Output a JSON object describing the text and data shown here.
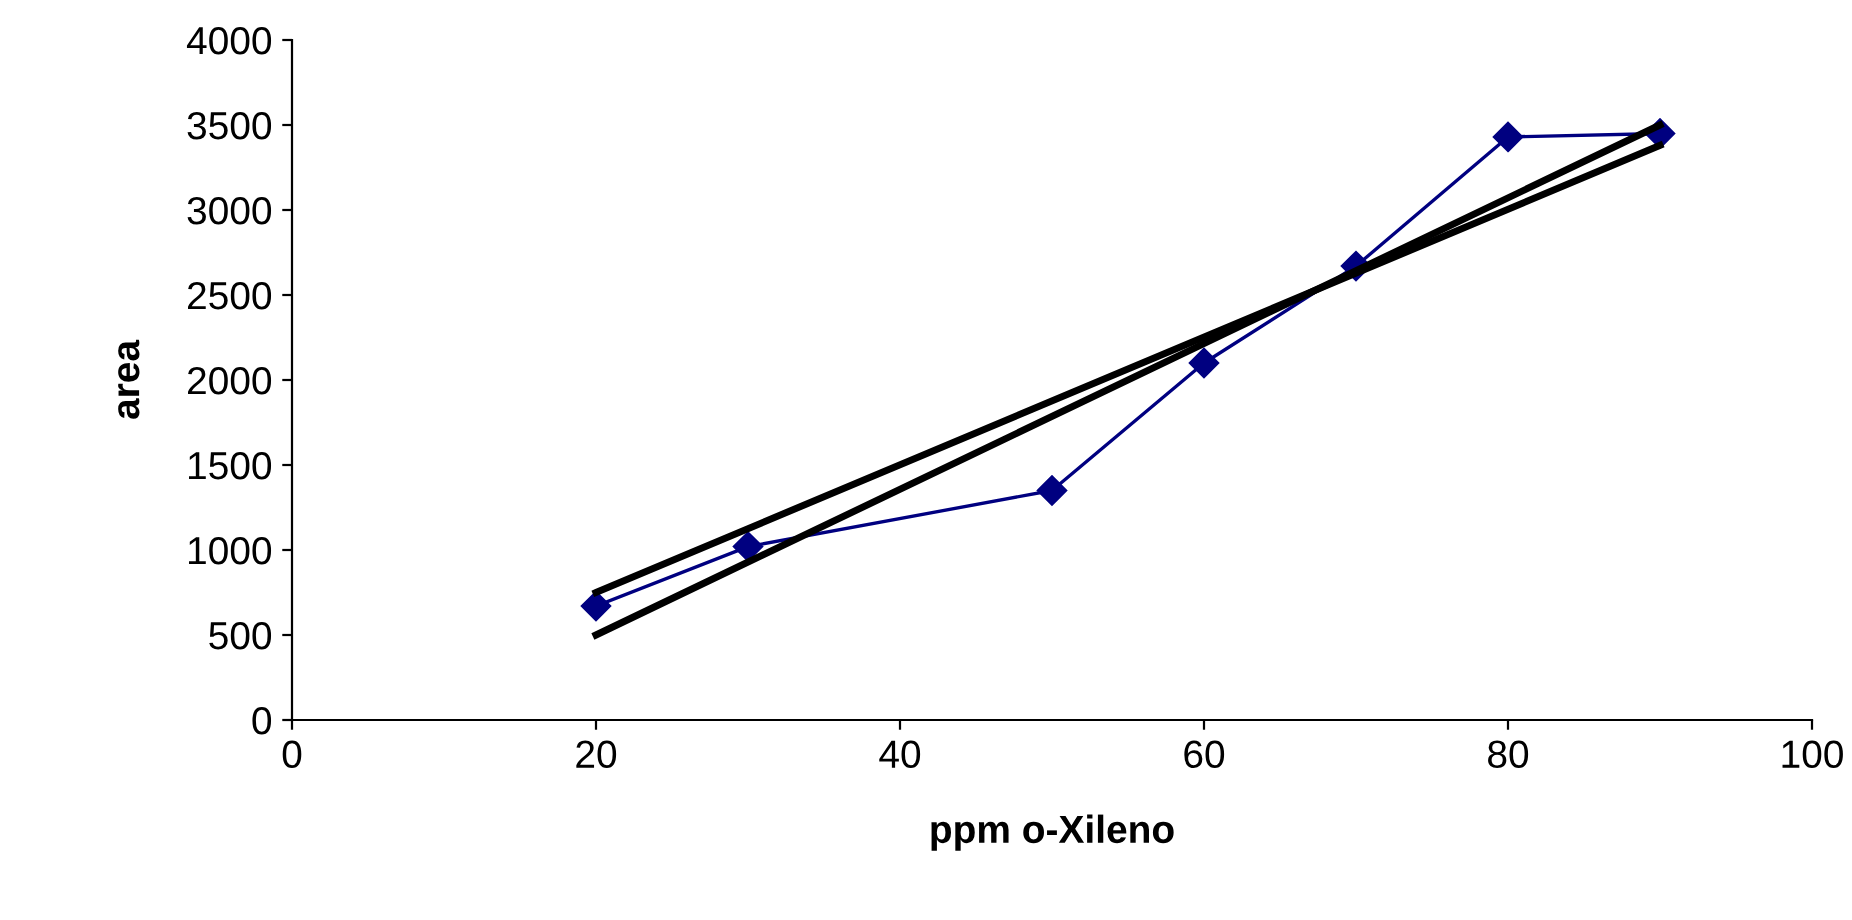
{
  "chart_data": {
    "type": "line",
    "xlabel": "ppm o-Xileno",
    "ylabel": "area",
    "series": [
      {
        "x": [
          20,
          30,
          50,
          60,
          70,
          80,
          90
        ],
        "values": [
          670,
          1020,
          1350,
          2100,
          2670,
          3430,
          3450
        ],
        "color": "#000080",
        "marker": "diamond"
      },
      {
        "x": [
          20,
          90
        ],
        "values": [
          750,
          3380
        ],
        "color": "#000000",
        "marker": "none"
      },
      {
        "x": [
          20,
          90
        ],
        "values": [
          500,
          3500
        ],
        "color": "#000000",
        "marker": "none"
      }
    ],
    "xlim": [
      0,
      100
    ],
    "xticks": [
      0,
      20,
      40,
      60,
      80,
      100
    ],
    "ylim": [
      0,
      4000
    ],
    "yticks": [
      0,
      500,
      1000,
      1500,
      2000,
      2500,
      3000,
      3500,
      4000
    ],
    "grid": false,
    "legend": false
  }
}
